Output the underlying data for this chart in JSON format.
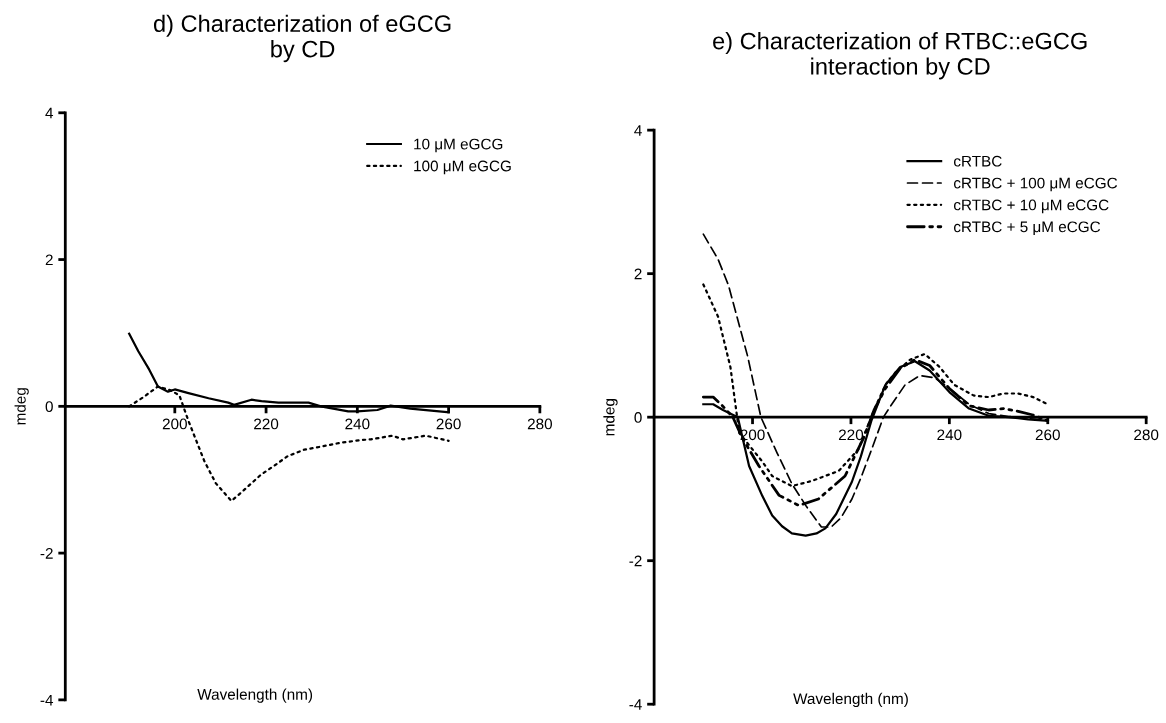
{
  "chart_data": [
    {
      "type": "line",
      "title": "d) Characterization of eGCG\nby CD",
      "xlabel": "Wavelength (nm)",
      "ylabel": "mdeg",
      "xlim": [
        176,
        280
      ],
      "xticks": [
        200,
        220,
        240,
        260,
        280
      ],
      "ylim": [
        -4,
        4
      ],
      "yticks": [
        -4,
        -2,
        0,
        2,
        4
      ],
      "grid": false,
      "legend": "top right",
      "marker": "none",
      "series": [
        {
          "name": "10 μM eGCG",
          "color": "#000000",
          "line_style": "solid",
          "x": [
            190,
            192,
            194.4,
            196.3,
            198.5,
            200,
            203,
            207.4,
            211.7,
            213,
            216.8,
            219,
            222.7,
            229.3,
            232,
            238,
            240,
            244.4,
            247.3,
            251.6,
            260
          ],
          "values": [
            0.99,
            0.75,
            0.5,
            0.27,
            0.2,
            0.23,
            0.18,
            0.11,
            0.05,
            0.02,
            0.09,
            0.07,
            0.05,
            0.05,
            0,
            -0.07,
            -0.07,
            -0.05,
            0.01,
            -0.03,
            -0.08
          ]
        },
        {
          "name": "100 μM eGCG",
          "color": "#000000",
          "line_style": "dotted",
          "x": [
            190,
            193,
            196.3,
            199,
            201,
            203,
            206.5,
            209,
            212.4,
            215,
            218.9,
            222,
            224.7,
            228.4,
            232,
            236,
            240.7,
            243,
            247.7,
            250,
            255,
            260
          ],
          "values": [
            0,
            0.12,
            0.27,
            0.22,
            0.15,
            -0.2,
            -0.75,
            -1.05,
            -1.29,
            -1.15,
            -0.93,
            -0.8,
            -0.68,
            -0.59,
            -0.55,
            -0.5,
            -0.46,
            -0.45,
            -0.4,
            -0.45,
            -0.4,
            -0.47
          ]
        }
      ]
    },
    {
      "type": "line",
      "title": "e) Characterization of RTBC::eGCG\ninteraction by CD",
      "xlabel": "Wavelength (nm)",
      "ylabel": "mdeg",
      "xlim": [
        180,
        280
      ],
      "xticks": [
        200,
        220,
        240,
        260,
        280
      ],
      "ylim": [
        -4,
        4
      ],
      "yticks": [
        -4,
        -2,
        0,
        2,
        4
      ],
      "grid": false,
      "legend": "top right",
      "marker": "none",
      "series": [
        {
          "name": "cRTBC",
          "color": "#000000",
          "line_style": "solid",
          "x": [
            190,
            192,
            194,
            197,
            199.3,
            202,
            204,
            206,
            208,
            210.8,
            213,
            214.8,
            217,
            220.2,
            222,
            224.2,
            227,
            230,
            233,
            236,
            240,
            244,
            248,
            252,
            256,
            260
          ],
          "values": [
            0.18,
            0.18,
            0.1,
            0,
            -0.68,
            -1.1,
            -1.37,
            -1.52,
            -1.62,
            -1.65,
            -1.62,
            -1.55,
            -1.35,
            -0.9,
            -0.55,
            -0.04,
            0.45,
            0.7,
            0.78,
            0.65,
            0.35,
            0.12,
            0.02,
            0,
            -0.03,
            -0.05
          ]
        },
        {
          "name": "cRTBC + 100 μM eCGC",
          "color": "#000000",
          "line_style": "dashed",
          "x": [
            190,
            193,
            195.1,
            199,
            201.7,
            205,
            208,
            211,
            214,
            216,
            218,
            220.2,
            222,
            224.2,
            226.6,
            228,
            231,
            234,
            237,
            240,
            244,
            248,
            252,
            256,
            260
          ],
          "values": [
            2.55,
            2.2,
            1.84,
            0.85,
            0,
            -0.5,
            -0.93,
            -1.25,
            -1.53,
            -1.53,
            -1.4,
            -1.14,
            -0.85,
            -0.45,
            0,
            0.15,
            0.45,
            0.58,
            0.55,
            0.4,
            0.18,
            0.05,
            0.01,
            -0.02,
            -0.04
          ]
        },
        {
          "name": "cRTBC + 10 μM eCGC",
          "color": "#000000",
          "line_style": "dotted",
          "x": [
            190,
            193,
            195.5,
            197.3,
            200,
            202,
            204,
            208,
            212,
            217.5,
            221.5,
            224.7,
            227,
            229,
            232,
            235,
            238,
            241,
            245,
            248,
            251,
            254,
            257,
            260
          ],
          "values": [
            1.85,
            1.4,
            0.7,
            -0.22,
            -0.45,
            -0.62,
            -0.82,
            -0.96,
            -0.89,
            -0.75,
            -0.45,
            0.1,
            0.45,
            0.62,
            0.8,
            0.88,
            0.7,
            0.45,
            0.3,
            0.28,
            0.33,
            0.33,
            0.28,
            0.18
          ]
        },
        {
          "name": "cRTBC + 5 μM eCGC",
          "color": "#000000",
          "line_style": "dashdot",
          "x": [
            190,
            192,
            194,
            196,
            198,
            201.3,
            205.4,
            209.4,
            213.4,
            218.8,
            222.7,
            224.7,
            227,
            230,
            233,
            236,
            240,
            244,
            248,
            251,
            254,
            257,
            260
          ],
          "values": [
            0.28,
            0.28,
            0.15,
            0,
            -0.3,
            -0.68,
            -1.09,
            -1.23,
            -1.14,
            -0.82,
            -0.27,
            0.1,
            0.4,
            0.68,
            0.8,
            0.72,
            0.4,
            0.16,
            0.1,
            0.12,
            0.08,
            0.03,
            -0.05
          ]
        }
      ]
    }
  ]
}
